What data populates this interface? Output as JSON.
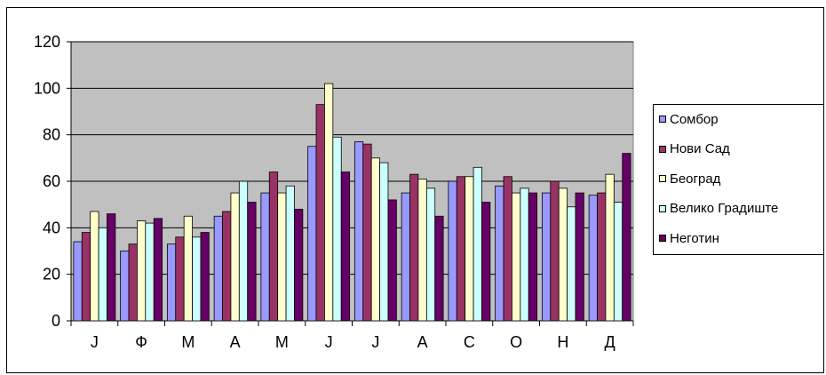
{
  "chart_data": {
    "type": "bar",
    "categories": [
      "J",
      "Ф",
      "М",
      "А",
      "М",
      "J",
      "J",
      "А",
      "С",
      "О",
      "Н",
      "Д"
    ],
    "series": [
      {
        "name": "Сомбор",
        "color": "#9999FF",
        "values": [
          34,
          30,
          33,
          45,
          55,
          75,
          77,
          55,
          60,
          58,
          55,
          54
        ]
      },
      {
        "name": "Нови Сад",
        "color": "#993366",
        "values": [
          38,
          33,
          36,
          47,
          64,
          93,
          76,
          63,
          62,
          62,
          60,
          55
        ]
      },
      {
        "name": "Београд",
        "color": "#FFFFCC",
        "values": [
          47,
          43,
          45,
          55,
          55,
          102,
          70,
          61,
          62,
          55,
          57,
          63
        ]
      },
      {
        "name": "Велико Градиште",
        "color": "#CCFFFF",
        "values": [
          40,
          42,
          36,
          60,
          58,
          79,
          68,
          57,
          66,
          57,
          49,
          51
        ]
      },
      {
        "name": "Неготин",
        "color": "#660066",
        "values": [
          46,
          44,
          38,
          51,
          48,
          64,
          52,
          45,
          51,
          55,
          55,
          72
        ]
      }
    ],
    "yticks": [
      0,
      20,
      40,
      60,
      80,
      100,
      120
    ],
    "ylim": [
      0,
      120
    ],
    "grid": true,
    "plot_background": "#C0C0C0",
    "legend_position": "right"
  }
}
